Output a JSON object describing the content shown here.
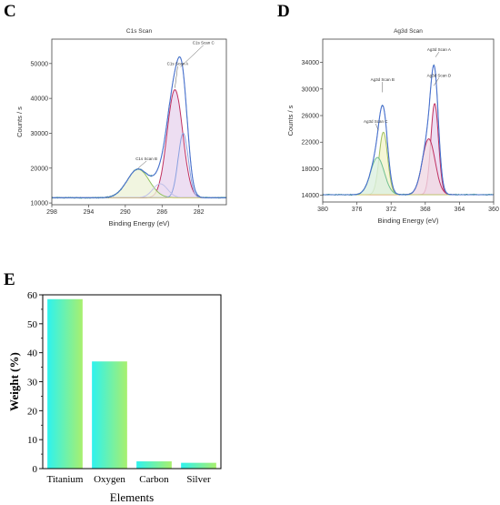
{
  "panels": {
    "c": "C",
    "d": "D",
    "e": "E"
  },
  "chart_data": [
    {
      "type": "line",
      "panel": "C",
      "title": "C1s Scan",
      "xlabel": "Binding Energy (eV)",
      "ylabel": "Counts / s",
      "xlim": [
        298,
        279
      ],
      "ylim": [
        9500,
        57000
      ],
      "xticks": [
        298,
        294,
        290,
        286,
        282
      ],
      "yticks": [
        10000,
        20000,
        30000,
        40000,
        50000
      ],
      "baseline": 11500,
      "peaks": [
        {
          "name": "C1s Scan A",
          "center": 284.6,
          "height": 31000,
          "width": 0.85,
          "color": "#c03060",
          "fill": "#e8d6ef"
        },
        {
          "name": "C1s Scan B",
          "center": 288.6,
          "height": 8200,
          "width": 1.2,
          "color": "#90c060",
          "fill": "#eef3d8"
        },
        {
          "name": "C1s Scan C",
          "center": 283.7,
          "height": 18500,
          "width": 0.55,
          "color": "#8aa0e0",
          "fill": "none"
        },
        {
          "name": "",
          "center": 286.2,
          "height": 4000,
          "width": 0.8,
          "color": "#c0c0e8",
          "fill": "none"
        }
      ],
      "annotations": [
        {
          "label": "C1s Scan C",
          "x": 281.5,
          "y": 55500,
          "tx": 284.0,
          "ty": 49000
        },
        {
          "label": "C1s Scan A",
          "x": 284.3,
          "y": 49500,
          "tx": 284.6,
          "ty": 43000
        },
        {
          "label": "C1s Scan B",
          "x": 287.7,
          "y": 22300,
          "tx": 288.6,
          "ty": 20000
        }
      ]
    },
    {
      "type": "line",
      "panel": "D",
      "title": "Ag3d Scan",
      "xlabel": "Binding Energy (eV)",
      "ylabel": "Counts / s",
      "xlim": [
        380,
        360
      ],
      "ylim": [
        13000,
        37500
      ],
      "xticks": [
        380,
        376,
        372,
        368,
        364,
        360
      ],
      "yticks": [
        14000,
        18000,
        22000,
        26000,
        30000,
        34000
      ],
      "baseline": 14100,
      "peaks": [
        {
          "name": "Ag3d Scan A",
          "center": 366.9,
          "height": 13700,
          "width": 0.45,
          "color": "#c03060",
          "fill": "#e8d6ef"
        },
        {
          "name": "Ag3d Scan D",
          "center": 367.6,
          "height": 8400,
          "width": 0.75,
          "color": "#c03060",
          "fill": "#f0d8e4"
        },
        {
          "name": "Ag3d Scan B",
          "center": 372.9,
          "height": 9400,
          "width": 0.5,
          "color": "#a0c060",
          "fill": "#f2f4cc"
        },
        {
          "name": "Ag3d Scan C",
          "center": 373.6,
          "height": 5600,
          "width": 0.8,
          "color": "#70c090",
          "fill": "#dcf0e0"
        }
      ],
      "annotations": [
        {
          "label": "Ag3d Scan A",
          "x": 366.4,
          "y": 35700,
          "tx": 366.8,
          "ty": 34800
        },
        {
          "label": "Ag3d Scan D",
          "x": 366.4,
          "y": 31800,
          "tx": 367.0,
          "ty": 30500
        },
        {
          "label": "Ag3d Scan B",
          "x": 373.0,
          "y": 31200,
          "tx": 373.0,
          "ty": 29500
        },
        {
          "label": "Ag3d Scan C",
          "x": 373.8,
          "y": 24900,
          "tx": 373.5,
          "ty": 23800
        }
      ]
    },
    {
      "type": "bar",
      "panel": "E",
      "title": "",
      "xlabel": "Elements",
      "ylabel": "Weight (%)",
      "categories": [
        "Titanium",
        "Oxygen",
        "Carbon",
        "Silver"
      ],
      "values": [
        58.5,
        37.0,
        2.5,
        2.0
      ],
      "ylim": [
        0,
        60
      ],
      "yticks": [
        0,
        10,
        20,
        30,
        40,
        50,
        60
      ],
      "gradient": [
        "#2ef2ee",
        "#a8f06e"
      ]
    }
  ]
}
